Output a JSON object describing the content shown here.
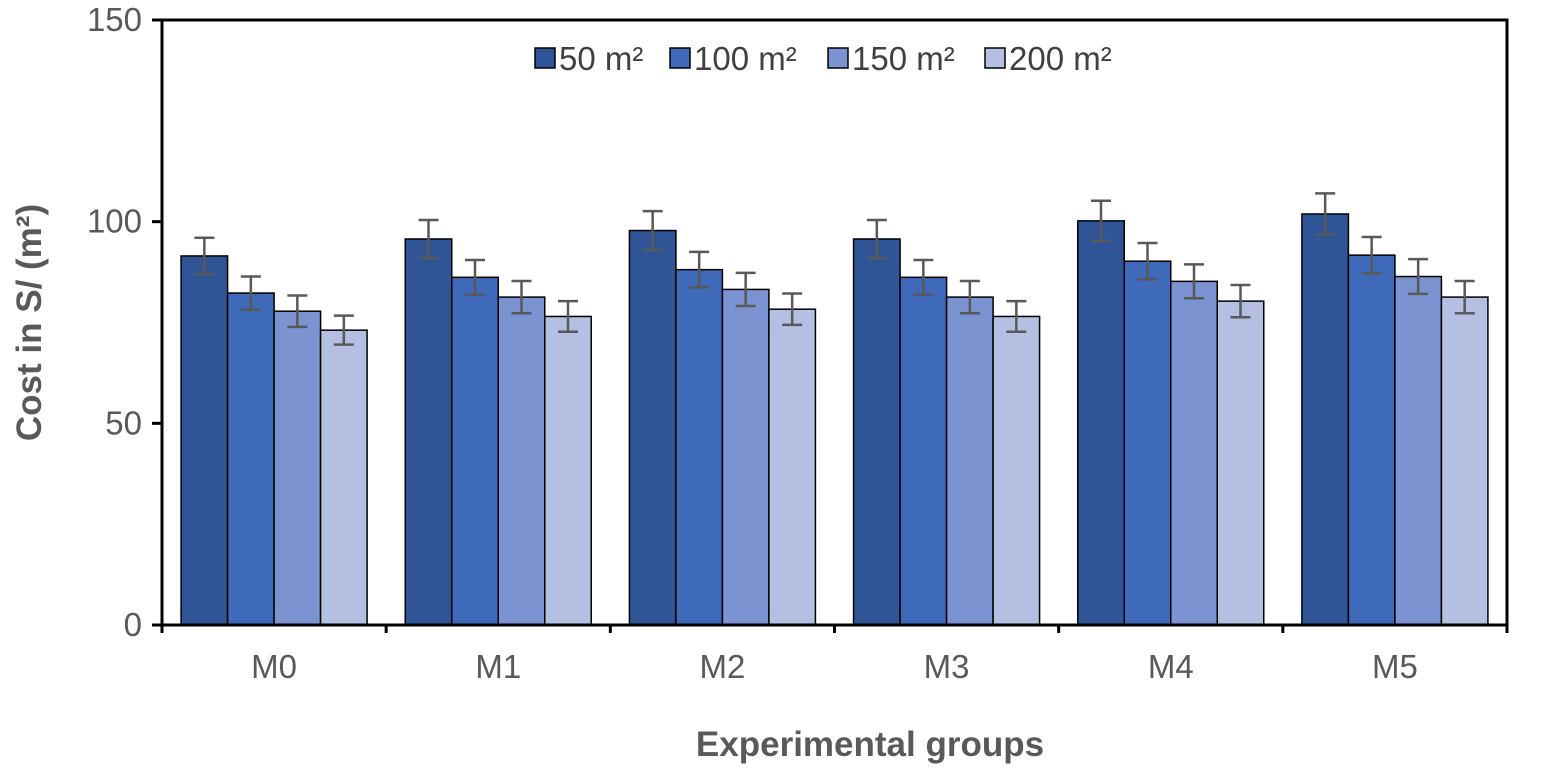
{
  "chart_data": {
    "type": "bar",
    "title": "",
    "xlabel": "Experimental groups",
    "ylabel": "Cost in S/ (m²)",
    "ylim": [
      0,
      150
    ],
    "yticks": [
      0,
      50,
      100,
      150
    ],
    "grid": false,
    "legend_position": "top-center",
    "categories": [
      "M0",
      "M1",
      "M2",
      "M3",
      "M4",
      "M5"
    ],
    "series": [
      {
        "name": "50 m²",
        "color": "#2f5597",
        "values": [
          91.5,
          95.7,
          97.8,
          95.7,
          100.2,
          101.9
        ],
        "errors": [
          4.5,
          4.7,
          4.8,
          4.7,
          5.0,
          5.1
        ]
      },
      {
        "name": "100 m²",
        "color": "#3f69b9",
        "values": [
          82.3,
          86.2,
          88.1,
          86.2,
          90.2,
          91.7
        ],
        "errors": [
          4.1,
          4.3,
          4.4,
          4.3,
          4.5,
          4.5
        ]
      },
      {
        "name": "150 m²",
        "color": "#7b93d1",
        "values": [
          77.8,
          81.3,
          83.2,
          81.3,
          85.2,
          86.4
        ],
        "errors": [
          3.9,
          4.0,
          4.1,
          4.0,
          4.2,
          4.3
        ]
      },
      {
        "name": "200 m²",
        "color": "#b4bfe2",
        "values": [
          73.1,
          76.5,
          78.3,
          76.5,
          80.3,
          81.3
        ],
        "errors": [
          3.6,
          3.8,
          3.9,
          3.8,
          4.0,
          4.0
        ]
      }
    ]
  }
}
